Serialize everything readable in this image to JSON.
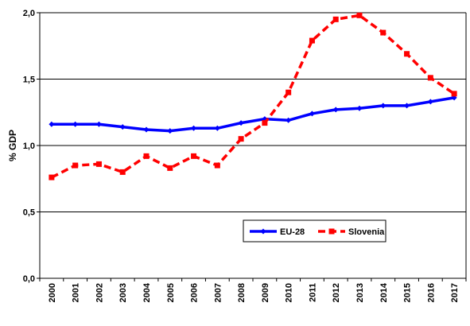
{
  "chart_data": {
    "type": "line",
    "title": "",
    "xlabel": "",
    "ylabel": "% GDP",
    "ylim": [
      0,
      2
    ],
    "yticks": [
      "0,0",
      "0,5",
      "1,0",
      "1,5",
      "2,0"
    ],
    "grid": true,
    "legend_position": "bottom-right",
    "categories": [
      "2000",
      "2001",
      "2002",
      "2003",
      "2004",
      "2005",
      "2006",
      "2007",
      "2008",
      "2009",
      "2010",
      "2011",
      "2012",
      "2013",
      "2014",
      "2015",
      "2016",
      "2017"
    ],
    "series": [
      {
        "name": "EU-28",
        "color": "#0000ff",
        "line_style": "solid",
        "marker": "diamond",
        "values": [
          1.16,
          1.16,
          1.16,
          1.14,
          1.12,
          1.11,
          1.13,
          1.13,
          1.17,
          1.2,
          1.19,
          1.24,
          1.27,
          1.28,
          1.3,
          1.3,
          1.33,
          1.36
        ]
      },
      {
        "name": "Slovenia",
        "color": "#ff0000",
        "line_style": "dashed",
        "marker": "square",
        "values": [
          0.76,
          0.85,
          0.86,
          0.8,
          0.92,
          0.83,
          0.92,
          0.85,
          1.05,
          1.17,
          1.4,
          1.79,
          1.95,
          1.98,
          1.85,
          1.69,
          1.51,
          1.39
        ]
      }
    ]
  }
}
